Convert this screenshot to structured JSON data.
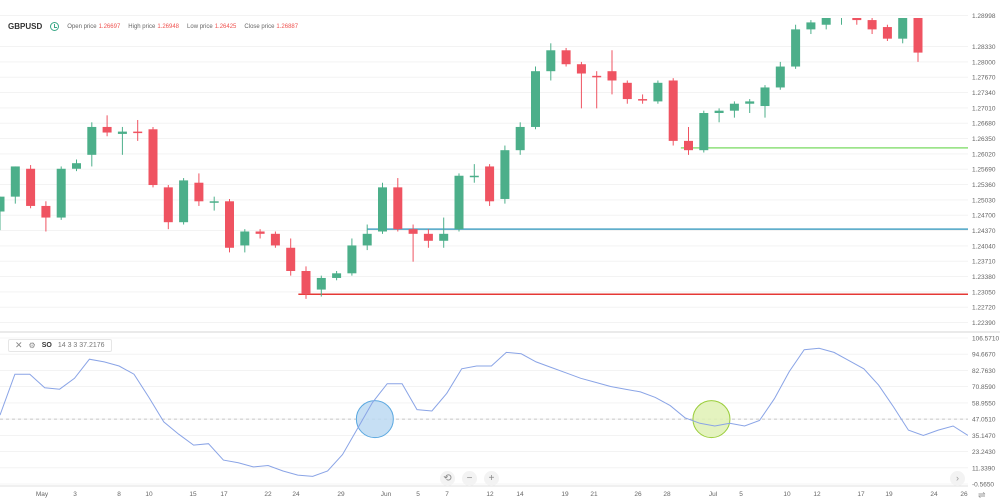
{
  "header": {
    "symbol": "GBPUSD",
    "open_label": "Open price",
    "open_value": "1.26697",
    "high_label": "High price",
    "high_value": "1.26948",
    "low_label": "Low price",
    "low_value": "1.26425",
    "close_label": "Close price",
    "close_value": "1.26887",
    "clock_icon": "clock-icon"
  },
  "indicator": {
    "name": "SO",
    "params": "14 3 3 37.2176",
    "close_icon": "close-icon",
    "settings_icon": "gear-icon"
  },
  "controls": {
    "reset": "⟲",
    "zoom_out": "−",
    "zoom_in": "+",
    "scroll_right": "›",
    "settings": "⇌"
  },
  "chart_data": {
    "type": "candlestick",
    "price_axis_ticks": [
      "1.28998",
      "1.28330",
      "1.28000",
      "1.27670",
      "1.27340",
      "1.27010",
      "1.26680",
      "1.26350",
      "1.26020",
      "1.25690",
      "1.25360",
      "1.25030",
      "1.24700",
      "1.24370",
      "1.24040",
      "1.23710",
      "1.23380",
      "1.23050",
      "1.22720",
      "1.22390"
    ],
    "price_range": [
      1.2223,
      1.2916
    ],
    "so_axis_ticks": [
      "106.5710",
      "94.6670",
      "82.7630",
      "70.8590",
      "58.9550",
      "47.0510",
      "35.1470",
      "23.2430",
      "11.3390",
      "-0.5650"
    ],
    "so_range": [
      -0.565,
      106.571
    ],
    "so_reference_line": 47.051,
    "x_tick_labels": [
      "May",
      "3",
      "8",
      "10",
      "15",
      "17",
      "22",
      "24",
      "29",
      "Jun",
      "5",
      "7",
      "12",
      "14",
      "19",
      "21",
      "26",
      "28",
      "Jul",
      "5",
      "10",
      "12",
      "17",
      "19",
      "24",
      "26"
    ],
    "candles": [
      {
        "o": 1.2478,
        "h": 1.251,
        "l": 1.2438,
        "c": 1.251
      },
      {
        "o": 1.251,
        "h": 1.2575,
        "l": 1.2495,
        "c": 1.2575
      },
      {
        "o": 1.257,
        "h": 1.2578,
        "l": 1.2485,
        "c": 1.249
      },
      {
        "o": 1.249,
        "h": 1.25,
        "l": 1.2435,
        "c": 1.2465
      },
      {
        "o": 1.2465,
        "h": 1.2575,
        "l": 1.246,
        "c": 1.257
      },
      {
        "o": 1.257,
        "h": 1.259,
        "l": 1.2565,
        "c": 1.2582
      },
      {
        "o": 1.26,
        "h": 1.267,
        "l": 1.2575,
        "c": 1.266
      },
      {
        "o": 1.266,
        "h": 1.2685,
        "l": 1.264,
        "c": 1.2648
      },
      {
        "o": 1.2645,
        "h": 1.266,
        "l": 1.26,
        "c": 1.265
      },
      {
        "o": 1.265,
        "h": 1.2675,
        "l": 1.263,
        "c": 1.2648
      },
      {
        "o": 1.2655,
        "h": 1.266,
        "l": 1.253,
        "c": 1.2535
      },
      {
        "o": 1.253,
        "h": 1.2535,
        "l": 1.244,
        "c": 1.2455
      },
      {
        "o": 1.2455,
        "h": 1.255,
        "l": 1.245,
        "c": 1.2545
      },
      {
        "o": 1.254,
        "h": 1.256,
        "l": 1.249,
        "c": 1.25
      },
      {
        "o": 1.25,
        "h": 1.251,
        "l": 1.248,
        "c": 1.25
      },
      {
        "o": 1.25,
        "h": 1.2505,
        "l": 1.239,
        "c": 1.24
      },
      {
        "o": 1.2405,
        "h": 1.244,
        "l": 1.239,
        "c": 1.2435
      },
      {
        "o": 1.2435,
        "h": 1.244,
        "l": 1.242,
        "c": 1.243
      },
      {
        "o": 1.243,
        "h": 1.2435,
        "l": 1.24,
        "c": 1.2405
      },
      {
        "o": 1.24,
        "h": 1.242,
        "l": 1.234,
        "c": 1.235
      },
      {
        "o": 1.235,
        "h": 1.236,
        "l": 1.229,
        "c": 1.23
      },
      {
        "o": 1.231,
        "h": 1.234,
        "l": 1.2295,
        "c": 1.2335
      },
      {
        "o": 1.2335,
        "h": 1.235,
        "l": 1.233,
        "c": 1.2345
      },
      {
        "o": 1.2345,
        "h": 1.242,
        "l": 1.234,
        "c": 1.2405
      },
      {
        "o": 1.2405,
        "h": 1.245,
        "l": 1.2395,
        "c": 1.243
      },
      {
        "o": 1.2435,
        "h": 1.254,
        "l": 1.243,
        "c": 1.253
      },
      {
        "o": 1.253,
        "h": 1.255,
        "l": 1.2435,
        "c": 1.244
      },
      {
        "o": 1.244,
        "h": 1.245,
        "l": 1.237,
        "c": 1.243
      },
      {
        "o": 1.243,
        "h": 1.244,
        "l": 1.24,
        "c": 1.2415
      },
      {
        "o": 1.2415,
        "h": 1.2465,
        "l": 1.24,
        "c": 1.243
      },
      {
        "o": 1.244,
        "h": 1.256,
        "l": 1.2435,
        "c": 1.2555
      },
      {
        "o": 1.2555,
        "h": 1.258,
        "l": 1.254,
        "c": 1.2555
      },
      {
        "o": 1.2575,
        "h": 1.258,
        "l": 1.249,
        "c": 1.25
      },
      {
        "o": 1.2505,
        "h": 1.262,
        "l": 1.2495,
        "c": 1.261
      },
      {
        "o": 1.261,
        "h": 1.267,
        "l": 1.26,
        "c": 1.266
      },
      {
        "o": 1.266,
        "h": 1.279,
        "l": 1.2655,
        "c": 1.278
      },
      {
        "o": 1.278,
        "h": 1.284,
        "l": 1.276,
        "c": 1.2825
      },
      {
        "o": 1.2825,
        "h": 1.283,
        "l": 1.279,
        "c": 1.2795
      },
      {
        "o": 1.2795,
        "h": 1.28,
        "l": 1.27,
        "c": 1.2775
      },
      {
        "o": 1.277,
        "h": 1.278,
        "l": 1.27,
        "c": 1.2768
      },
      {
        "o": 1.278,
        "h": 1.2825,
        "l": 1.273,
        "c": 1.276
      },
      {
        "o": 1.2755,
        "h": 1.276,
        "l": 1.271,
        "c": 1.272
      },
      {
        "o": 1.272,
        "h": 1.273,
        "l": 1.271,
        "c": 1.2718
      },
      {
        "o": 1.2715,
        "h": 1.276,
        "l": 1.271,
        "c": 1.2755
      },
      {
        "o": 1.276,
        "h": 1.2765,
        "l": 1.262,
        "c": 1.263
      },
      {
        "o": 1.263,
        "h": 1.266,
        "l": 1.26,
        "c": 1.261
      },
      {
        "o": 1.261,
        "h": 1.2695,
        "l": 1.2605,
        "c": 1.269
      },
      {
        "o": 1.269,
        "h": 1.27,
        "l": 1.267,
        "c": 1.2695
      },
      {
        "o": 1.2695,
        "h": 1.2715,
        "l": 1.268,
        "c": 1.271
      },
      {
        "o": 1.271,
        "h": 1.272,
        "l": 1.269,
        "c": 1.2715
      },
      {
        "o": 1.2705,
        "h": 1.275,
        "l": 1.268,
        "c": 1.2745
      },
      {
        "o": 1.2745,
        "h": 1.28,
        "l": 1.274,
        "c": 1.279
      },
      {
        "o": 1.279,
        "h": 1.288,
        "l": 1.2785,
        "c": 1.287
      },
      {
        "o": 1.287,
        "h": 1.289,
        "l": 1.286,
        "c": 1.2885
      },
      {
        "o": 1.288,
        "h": 1.292,
        "l": 1.287,
        "c": 1.2915
      },
      {
        "o": 1.29,
        "h": 1.292,
        "l": 1.288,
        "c": 1.2915
      },
      {
        "o": 1.291,
        "h": 1.2915,
        "l": 1.288,
        "c": 1.289
      },
      {
        "o": 1.289,
        "h": 1.29,
        "l": 1.286,
        "c": 1.287
      },
      {
        "o": 1.2875,
        "h": 1.288,
        "l": 1.2845,
        "c": 1.285
      },
      {
        "o": 1.285,
        "h": 1.292,
        "l": 1.284,
        "c": 1.291
      },
      {
        "o": 1.2915,
        "h": 1.292,
        "l": 1.28,
        "c": 1.282
      }
    ],
    "horizontal_levels": [
      {
        "price": 1.2615,
        "color": "#8ee07a"
      },
      {
        "price": 1.244,
        "color": "#4aa3c4"
      },
      {
        "price": 1.23,
        "color": "#e53935"
      }
    ],
    "so_line": [
      50,
      80,
      80,
      70,
      69,
      77,
      91,
      89,
      86,
      80,
      63,
      45,
      36,
      28,
      29,
      17,
      15,
      12,
      13,
      9,
      6,
      5,
      9,
      21,
      40,
      59,
      73,
      73,
      54,
      53,
      66,
      84,
      86,
      86,
      96,
      95,
      89,
      85,
      81,
      77,
      74,
      71,
      69,
      67,
      63,
      57,
      48,
      44,
      42,
      44,
      42,
      46,
      62,
      82,
      98,
      99,
      96,
      90,
      84,
      72,
      56,
      39,
      35,
      39,
      42,
      35
    ],
    "highlight_markers": [
      {
        "so": 47.051,
        "color": "#5ba8e0",
        "fill": "#bcd9f2",
        "index": 24.5
      },
      {
        "so": 47.051,
        "color": "#9acd3a",
        "fill": "#dff1b4",
        "index": 46.5
      }
    ],
    "colors": {
      "up": "#4caf8a",
      "down": "#ef5361",
      "so_line": "#8aa4e6",
      "grid": "#ececec"
    }
  }
}
